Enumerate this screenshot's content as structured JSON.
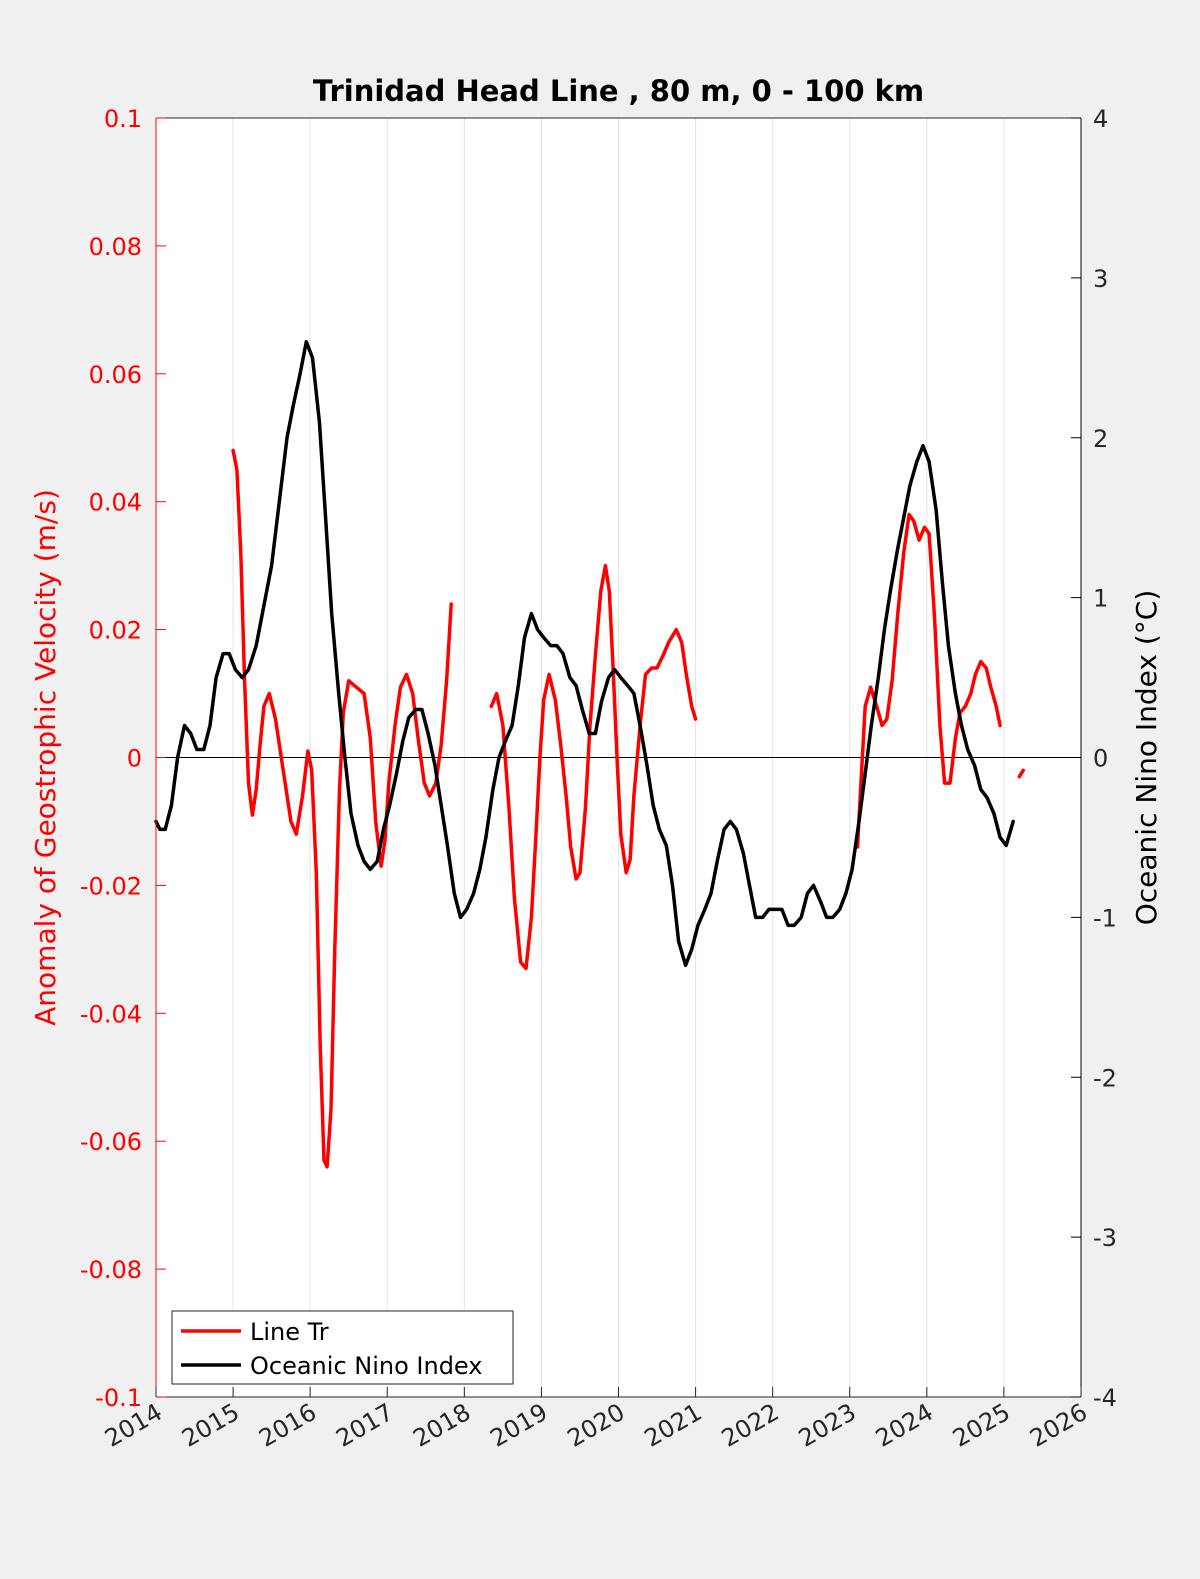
{
  "chart_data": {
    "type": "line",
    "title": "Trinidad Head Line , 80 m, 0 - 100 km",
    "xlabel": "",
    "ylabel_left": "Anomaly of Geostrophic Velocity (m/s)",
    "ylabel_right": "Oceanic Nino Index (°C)",
    "xlim": [
      2014,
      2026
    ],
    "ylim_left": [
      -0.1,
      0.1
    ],
    "ylim_right": [
      -4,
      4
    ],
    "x_ticks": [
      "2014",
      "2015",
      "2016",
      "2017",
      "2018",
      "2019",
      "2020",
      "2021",
      "2022",
      "2023",
      "2024",
      "2025",
      "2026"
    ],
    "y_ticks_left": [
      "-0.1",
      "-0.08",
      "-0.06",
      "-0.04",
      "-0.02",
      "0",
      "0.02",
      "0.04",
      "0.06",
      "0.08",
      "0.1"
    ],
    "y_ticks_right": [
      "-4",
      "-3",
      "-2",
      "-1",
      "0",
      "1",
      "2",
      "3",
      "4"
    ],
    "grid": "vertical",
    "legend_position": "bottom-left",
    "colors": {
      "line_tr": "#ff0000",
      "oni": "#000000",
      "left_axis": "#ff0000",
      "right_axis": "#000000",
      "background": "#f0f0f0",
      "plot_area": "#ffffff"
    },
    "series": [
      {
        "name": "Line Tr",
        "axis": "left",
        "color": "#ff0000",
        "segments": [
          [
            [
              2015.0,
              0.048
            ],
            [
              2015.05,
              0.045
            ],
            [
              2015.1,
              0.032
            ],
            [
              2015.15,
              0.012
            ],
            [
              2015.2,
              -0.004
            ],
            [
              2015.25,
              -0.009
            ],
            [
              2015.3,
              -0.005
            ],
            [
              2015.35,
              0.002
            ],
            [
              2015.4,
              0.008
            ],
            [
              2015.47,
              0.01
            ],
            [
              2015.55,
              0.006
            ],
            [
              2015.65,
              -0.002
            ],
            [
              2015.75,
              -0.01
            ],
            [
              2015.82,
              -0.012
            ],
            [
              2015.9,
              -0.006
            ],
            [
              2015.97,
              0.001
            ],
            [
              2016.02,
              -0.002
            ],
            [
              2016.08,
              -0.018
            ],
            [
              2016.13,
              -0.045
            ],
            [
              2016.18,
              -0.063
            ],
            [
              2016.22,
              -0.064
            ],
            [
              2016.27,
              -0.055
            ],
            [
              2016.32,
              -0.03
            ],
            [
              2016.38,
              -0.005
            ],
            [
              2016.43,
              0.007
            ],
            [
              2016.5,
              0.012
            ],
            [
              2016.6,
              0.011
            ],
            [
              2016.7,
              0.01
            ],
            [
              2016.78,
              0.003
            ],
            [
              2016.85,
              -0.01
            ],
            [
              2016.92,
              -0.017
            ],
            [
              2016.97,
              -0.013
            ],
            [
              2017.02,
              -0.004
            ],
            [
              2017.1,
              0.005
            ],
            [
              2017.17,
              0.011
            ],
            [
              2017.25,
              0.013
            ],
            [
              2017.33,
              0.01
            ],
            [
              2017.4,
              0.003
            ],
            [
              2017.48,
              -0.004
            ],
            [
              2017.55,
              -0.006
            ],
            [
              2017.63,
              -0.004
            ],
            [
              2017.7,
              0.002
            ],
            [
              2017.77,
              0.012
            ],
            [
              2017.83,
              0.024
            ]
          ],
          [
            [
              2018.35,
              0.008
            ],
            [
              2018.42,
              0.01
            ],
            [
              2018.5,
              0.005
            ],
            [
              2018.58,
              -0.008
            ],
            [
              2018.65,
              -0.022
            ],
            [
              2018.73,
              -0.032
            ],
            [
              2018.8,
              -0.033
            ],
            [
              2018.87,
              -0.025
            ],
            [
              2018.93,
              -0.012
            ],
            [
              2018.98,
              0.0
            ],
            [
              2019.03,
              0.009
            ],
            [
              2019.1,
              0.013
            ],
            [
              2019.18,
              0.009
            ],
            [
              2019.25,
              0.002
            ],
            [
              2019.32,
              -0.006
            ],
            [
              2019.38,
              -0.014
            ],
            [
              2019.45,
              -0.019
            ],
            [
              2019.5,
              -0.018
            ],
            [
              2019.57,
              -0.008
            ],
            [
              2019.63,
              0.005
            ],
            [
              2019.7,
              0.016
            ],
            [
              2019.77,
              0.026
            ],
            [
              2019.83,
              0.03
            ],
            [
              2019.88,
              0.026
            ],
            [
              2019.93,
              0.014
            ],
            [
              2019.98,
              0.0
            ],
            [
              2020.03,
              -0.012
            ],
            [
              2020.1,
              -0.018
            ],
            [
              2020.15,
              -0.016
            ],
            [
              2020.2,
              -0.006
            ],
            [
              2020.28,
              0.005
            ],
            [
              2020.35,
              0.013
            ],
            [
              2020.43,
              0.014
            ],
            [
              2020.5,
              0.014
            ],
            [
              2020.58,
              0.016
            ],
            [
              2020.65,
              0.018
            ],
            [
              2020.75,
              0.02
            ],
            [
              2020.82,
              0.018
            ],
            [
              2020.88,
              0.013
            ],
            [
              2020.95,
              0.008
            ],
            [
              2021.0,
              0.006
            ]
          ],
          [
            [
              2023.1,
              -0.014
            ],
            [
              2023.15,
              -0.003
            ],
            [
              2023.2,
              0.008
            ],
            [
              2023.27,
              0.011
            ],
            [
              2023.35,
              0.008
            ],
            [
              2023.42,
              0.005
            ],
            [
              2023.48,
              0.006
            ],
            [
              2023.55,
              0.012
            ],
            [
              2023.62,
              0.022
            ],
            [
              2023.7,
              0.032
            ],
            [
              2023.77,
              0.038
            ],
            [
              2023.83,
              0.037
            ],
            [
              2023.9,
              0.034
            ],
            [
              2023.97,
              0.036
            ],
            [
              2024.03,
              0.035
            ],
            [
              2024.1,
              0.022
            ],
            [
              2024.17,
              0.005
            ],
            [
              2024.23,
              -0.004
            ],
            [
              2024.3,
              -0.004
            ],
            [
              2024.37,
              0.003
            ],
            [
              2024.43,
              0.007
            ],
            [
              2024.5,
              0.008
            ],
            [
              2024.57,
              0.01
            ],
            [
              2024.63,
              0.013
            ],
            [
              2024.7,
              0.015
            ],
            [
              2024.77,
              0.014
            ],
            [
              2024.83,
              0.011
            ],
            [
              2024.9,
              0.008
            ],
            [
              2024.95,
              0.005
            ]
          ],
          [
            [
              2025.2,
              -0.003
            ],
            [
              2025.25,
              -0.002
            ]
          ]
        ]
      },
      {
        "name": "Oceanic Nino Index",
        "axis": "right",
        "color": "#000000",
        "segments": [
          [
            [
              2014.0,
              -0.4
            ],
            [
              2014.05,
              -0.45
            ],
            [
              2014.12,
              -0.45
            ],
            [
              2014.2,
              -0.3
            ],
            [
              2014.28,
              0.0
            ],
            [
              2014.37,
              0.2
            ],
            [
              2014.45,
              0.15
            ],
            [
              2014.53,
              0.05
            ],
            [
              2014.62,
              0.05
            ],
            [
              2014.7,
              0.2
            ],
            [
              2014.78,
              0.5
            ],
            [
              2014.87,
              0.65
            ],
            [
              2014.95,
              0.65
            ],
            [
              2015.03,
              0.55
            ],
            [
              2015.12,
              0.5
            ],
            [
              2015.2,
              0.55
            ],
            [
              2015.3,
              0.7
            ],
            [
              2015.4,
              0.95
            ],
            [
              2015.5,
              1.2
            ],
            [
              2015.6,
              1.6
            ],
            [
              2015.7,
              2.0
            ],
            [
              2015.78,
              2.2
            ],
            [
              2015.87,
              2.4
            ],
            [
              2015.95,
              2.6
            ],
            [
              2016.03,
              2.5
            ],
            [
              2016.12,
              2.1
            ],
            [
              2016.2,
              1.5
            ],
            [
              2016.28,
              0.9
            ],
            [
              2016.37,
              0.4
            ],
            [
              2016.45,
              0.0
            ],
            [
              2016.53,
              -0.35
            ],
            [
              2016.62,
              -0.55
            ],
            [
              2016.7,
              -0.65
            ],
            [
              2016.78,
              -0.7
            ],
            [
              2016.87,
              -0.65
            ],
            [
              2016.95,
              -0.45
            ],
            [
              2017.03,
              -0.3
            ],
            [
              2017.12,
              -0.1
            ],
            [
              2017.2,
              0.1
            ],
            [
              2017.28,
              0.25
            ],
            [
              2017.37,
              0.3
            ],
            [
              2017.45,
              0.3
            ],
            [
              2017.53,
              0.15
            ],
            [
              2017.62,
              -0.05
            ],
            [
              2017.7,
              -0.3
            ],
            [
              2017.78,
              -0.55
            ],
            [
              2017.87,
              -0.85
            ],
            [
              2017.95,
              -1.0
            ],
            [
              2018.03,
              -0.95
            ],
            [
              2018.12,
              -0.85
            ],
            [
              2018.2,
              -0.7
            ],
            [
              2018.28,
              -0.5
            ],
            [
              2018.37,
              -0.2
            ],
            [
              2018.45,
              0.0
            ],
            [
              2018.53,
              0.1
            ],
            [
              2018.62,
              0.2
            ],
            [
              2018.7,
              0.45
            ],
            [
              2018.78,
              0.75
            ],
            [
              2018.87,
              0.9
            ],
            [
              2018.95,
              0.8
            ],
            [
              2019.03,
              0.75
            ],
            [
              2019.12,
              0.7
            ],
            [
              2019.2,
              0.7
            ],
            [
              2019.28,
              0.65
            ],
            [
              2019.37,
              0.5
            ],
            [
              2019.45,
              0.45
            ],
            [
              2019.53,
              0.3
            ],
            [
              2019.62,
              0.15
            ],
            [
              2019.7,
              0.15
            ],
            [
              2019.78,
              0.35
            ],
            [
              2019.87,
              0.5
            ],
            [
              2019.95,
              0.55
            ],
            [
              2020.03,
              0.5
            ],
            [
              2020.12,
              0.45
            ],
            [
              2020.2,
              0.4
            ],
            [
              2020.28,
              0.2
            ],
            [
              2020.37,
              -0.05
            ],
            [
              2020.45,
              -0.3
            ],
            [
              2020.53,
              -0.45
            ],
            [
              2020.62,
              -0.55
            ],
            [
              2020.7,
              -0.8
            ],
            [
              2020.78,
              -1.15
            ],
            [
              2020.87,
              -1.3
            ],
            [
              2020.95,
              -1.2
            ],
            [
              2021.03,
              -1.05
            ],
            [
              2021.12,
              -0.95
            ],
            [
              2021.2,
              -0.85
            ],
            [
              2021.28,
              -0.65
            ],
            [
              2021.37,
              -0.45
            ],
            [
              2021.45,
              -0.4
            ],
            [
              2021.53,
              -0.45
            ],
            [
              2021.62,
              -0.6
            ],
            [
              2021.7,
              -0.8
            ],
            [
              2021.78,
              -1.0
            ],
            [
              2021.87,
              -1.0
            ],
            [
              2021.95,
              -0.95
            ],
            [
              2022.03,
              -0.95
            ],
            [
              2022.12,
              -0.95
            ],
            [
              2022.2,
              -1.05
            ],
            [
              2022.28,
              -1.05
            ],
            [
              2022.37,
              -1.0
            ],
            [
              2022.45,
              -0.85
            ],
            [
              2022.53,
              -0.8
            ],
            [
              2022.62,
              -0.9
            ],
            [
              2022.7,
              -1.0
            ],
            [
              2022.78,
              -1.0
            ],
            [
              2022.87,
              -0.95
            ],
            [
              2022.95,
              -0.85
            ],
            [
              2023.03,
              -0.7
            ],
            [
              2023.12,
              -0.4
            ],
            [
              2023.2,
              -0.1
            ],
            [
              2023.28,
              0.2
            ],
            [
              2023.37,
              0.5
            ],
            [
              2023.45,
              0.8
            ],
            [
              2023.53,
              1.05
            ],
            [
              2023.62,
              1.3
            ],
            [
              2023.7,
              1.5
            ],
            [
              2023.78,
              1.7
            ],
            [
              2023.87,
              1.85
            ],
            [
              2023.95,
              1.95
            ],
            [
              2024.03,
              1.85
            ],
            [
              2024.12,
              1.55
            ],
            [
              2024.2,
              1.1
            ],
            [
              2024.28,
              0.7
            ],
            [
              2024.37,
              0.4
            ],
            [
              2024.45,
              0.2
            ],
            [
              2024.53,
              0.05
            ],
            [
              2024.62,
              -0.05
            ],
            [
              2024.7,
              -0.2
            ],
            [
              2024.78,
              -0.25
            ],
            [
              2024.87,
              -0.35
            ],
            [
              2024.95,
              -0.5
            ],
            [
              2025.03,
              -0.55
            ],
            [
              2025.12,
              -0.4
            ]
          ]
        ]
      }
    ]
  },
  "legend": {
    "items": [
      {
        "label": "Line Tr",
        "color": "#ff0000"
      },
      {
        "label": "Oceanic Nino Index",
        "color": "#000000"
      }
    ]
  }
}
